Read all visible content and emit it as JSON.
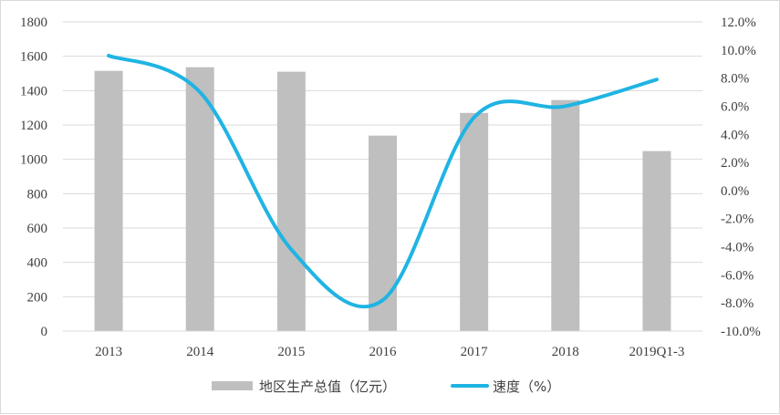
{
  "chart_data": {
    "type": "bar",
    "categories": [
      "2013",
      "2014",
      "2015",
      "2016",
      "2017",
      "2018",
      "2019Q1-3"
    ],
    "series": [
      {
        "name": "地区生产总值（亿元）",
        "type": "bar",
        "axis": "left",
        "color": "#bfbfbf",
        "values": [
          1515,
          1536,
          1510,
          1138,
          1270,
          1345,
          1048
        ]
      },
      {
        "name": "速度（%）",
        "type": "line",
        "axis": "right",
        "color": "#1fb4e3",
        "smooth": true,
        "values": [
          9.6,
          7.0,
          -4.2,
          -7.8,
          5.2,
          6.0,
          7.9
        ]
      }
    ],
    "y_left": {
      "ylim": [
        0,
        1800
      ],
      "ticks": [
        "0",
        "200",
        "400",
        "600",
        "800",
        "1000",
        "1200",
        "1400",
        "1600",
        "1800"
      ]
    },
    "y_right": {
      "ylim": [
        -10,
        12
      ],
      "ticks": [
        "-10.0%",
        "-8.0%",
        "-6.0%",
        "-4.0%",
        "-2.0%",
        "0.0%",
        "2.0%",
        "4.0%",
        "6.0%",
        "8.0%",
        "10.0%",
        "12.0%"
      ]
    },
    "grid": true,
    "legend_position": "bottom"
  }
}
